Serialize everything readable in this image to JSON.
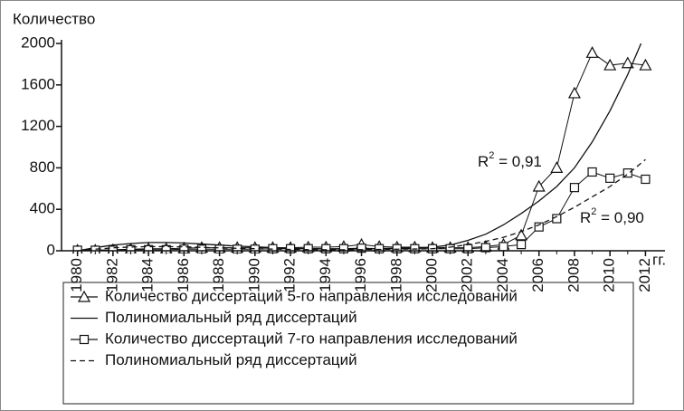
{
  "chart_data": {
    "type": "line",
    "ylabel": "Количество",
    "xunit": "гг.",
    "x": [
      1980,
      1981,
      1982,
      1983,
      1984,
      1985,
      1986,
      1987,
      1988,
      1989,
      1990,
      1991,
      1992,
      1993,
      1994,
      1995,
      1996,
      1997,
      1998,
      1999,
      2000,
      2001,
      2002,
      2003,
      2004,
      2005,
      2006,
      2007,
      2008,
      2009,
      2010,
      2011,
      2012
    ],
    "xlim": [
      1979.1,
      2013.1
    ],
    "xticks": [
      1980,
      1982,
      1984,
      1986,
      1988,
      1990,
      1992,
      1994,
      1996,
      1998,
      2000,
      2002,
      2004,
      2006,
      2008,
      2010,
      2012
    ],
    "ylim": [
      0,
      2000
    ],
    "yticks": [
      0,
      400,
      800,
      1200,
      1600,
      2000
    ],
    "series": [
      {
        "name": "Количество диссертаций 5-го направления исследований",
        "color": "#111111",
        "marker": "triangle",
        "dash": "solid",
        "values": [
          5,
          5,
          10,
          15,
          20,
          20,
          25,
          30,
          30,
          30,
          30,
          30,
          30,
          35,
          35,
          40,
          60,
          40,
          35,
          35,
          30,
          30,
          30,
          40,
          60,
          150,
          620,
          800,
          1520,
          1910,
          1790,
          1810,
          1790
        ]
      },
      {
        "name": "Полиномиальный ряд диссертаций",
        "color": "#111111",
        "marker": "none",
        "dash": "solid",
        "values": [
          0,
          30,
          55,
          70,
          80,
          80,
          75,
          65,
          55,
          45,
          38,
          30,
          25,
          20,
          18,
          18,
          20,
          22,
          25,
          28,
          35,
          55,
          100,
          160,
          250,
          360,
          480,
          620,
          800,
          1050,
          1350,
          1700,
          2100
        ]
      },
      {
        "name": "Количество диссертаций 7-го направления исследований",
        "color": "#111111",
        "marker": "square",
        "dash": "solid",
        "values": [
          5,
          5,
          5,
          10,
          10,
          10,
          15,
          15,
          15,
          15,
          15,
          20,
          20,
          20,
          20,
          20,
          25,
          20,
          20,
          20,
          20,
          20,
          20,
          30,
          40,
          60,
          230,
          310,
          610,
          760,
          700,
          750,
          690
        ]
      },
      {
        "name": "Полиномиальный ряд диссертаций",
        "color": "#111111",
        "marker": "none",
        "dash": "dashed",
        "values": [
          0,
          15,
          28,
          36,
          40,
          40,
          38,
          33,
          28,
          24,
          20,
          16,
          13,
          11,
          10,
          10,
          11,
          13,
          15,
          17,
          20,
          35,
          60,
          90,
          130,
          185,
          250,
          330,
          420,
          520,
          620,
          740,
          880
        ]
      }
    ],
    "annotations": [
      {
        "base": "R",
        "sup": "2",
        "rest": " = 0,91"
      },
      {
        "base": "R",
        "sup": "2",
        "rest": " = 0,90"
      }
    ]
  }
}
